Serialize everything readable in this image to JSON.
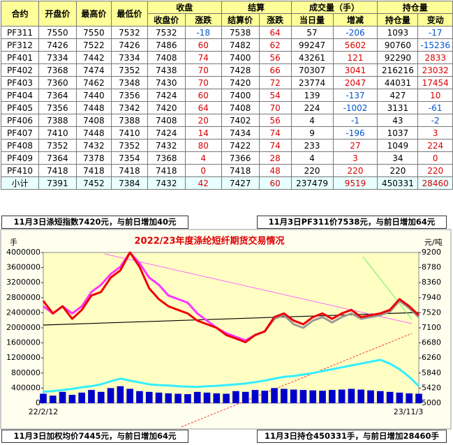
{
  "table": {
    "columns": [
      "合约",
      "开盘价",
      "最高价",
      "最低价"
    ],
    "groups": [
      {
        "title": "收盘",
        "columns": [
          "收盘价",
          "涨跌"
        ]
      },
      {
        "title": "结算",
        "columns": [
          "结算价",
          "涨跌"
        ]
      },
      {
        "title": "成交量（手）",
        "columns": [
          "当日量",
          "增减"
        ]
      },
      {
        "title": "持仓量",
        "columns": [
          "持仓量",
          "变动"
        ]
      }
    ],
    "rows": [
      [
        "PF311",
        7550,
        7550,
        7532,
        7532,
        -18,
        7538,
        64,
        57,
        -206,
        1093,
        -17
      ],
      [
        "PF312",
        7426,
        7522,
        7426,
        7486,
        60,
        7482,
        62,
        99247,
        5602,
        90760,
        -15236
      ],
      [
        "PF401",
        7334,
        7442,
        7334,
        7408,
        74,
        7400,
        56,
        43261,
        121,
        92290,
        2833
      ],
      [
        "PF402",
        7368,
        7474,
        7352,
        7438,
        70,
        7428,
        66,
        70307,
        3041,
        216216,
        23032
      ],
      [
        "PF403",
        7360,
        7462,
        7348,
        7430,
        70,
        7420,
        72,
        23774,
        2047,
        44031,
        17454
      ],
      [
        "PF404",
        7364,
        7440,
        7356,
        7424,
        60,
        7400,
        54,
        139,
        -137,
        427,
        10
      ],
      [
        "PF405",
        7356,
        7448,
        7342,
        7420,
        64,
        7408,
        70,
        224,
        -1002,
        3131,
        -61
      ],
      [
        "PF406",
        7388,
        7408,
        7388,
        7408,
        20,
        7402,
        56,
        4,
        -1,
        43,
        -2
      ],
      [
        "PF407",
        7410,
        7448,
        7410,
        7424,
        14,
        7434,
        74,
        9,
        -196,
        1037,
        3
      ],
      [
        "PF408",
        7352,
        7432,
        7352,
        7432,
        80,
        7422,
        74,
        233,
        27,
        1049,
        224
      ],
      [
        "PF409",
        7364,
        7378,
        7354,
        7368,
        4,
        7366,
        28,
        4,
        3,
        34,
        0
      ],
      [
        "PF410",
        7418,
        7418,
        7418,
        7418,
        0,
        7418,
        48,
        220,
        220,
        220,
        220
      ],
      [
        "小计",
        7391,
        7452,
        7384,
        7432,
        42,
        7427,
        60,
        237479,
        9519,
        450331,
        28460
      ]
    ]
  },
  "banners": [
    "11月3日涤短指数7420元，与前日增加40元",
    "11月3日PF311价7538元，与前日增加64元",
    "11月3日加权均价7445元，与前日增加64元",
    "11月3日持仓450331手，与前日增加28460手"
  ],
  "chart_data": {
    "type": "combo",
    "title": "2022/23年度涤纶短纤期货交易情况",
    "y_label": "手",
    "y2_label": "元/吨",
    "categories": [
      "22/2/12",
      null,
      null,
      null,
      null,
      null,
      null,
      null,
      null,
      null,
      null,
      null,
      null,
      null,
      null,
      null,
      null,
      null,
      null,
      null,
      null,
      null,
      null,
      null,
      null,
      null,
      null,
      null,
      null,
      null,
      null,
      null,
      null,
      null,
      null,
      null,
      null,
      null,
      null,
      "23/11/3"
    ],
    "ylim": [
      0,
      4000000
    ],
    "yticks": [
      0,
      400000,
      800000,
      1200000,
      1600000,
      2000000,
      2400000,
      2800000,
      3200000,
      3600000,
      4000000
    ],
    "y2lim": [
      5000,
      9200
    ],
    "y2ticks": [
      5000,
      5420,
      5840,
      6260,
      6680,
      7100,
      7520,
      7940,
      8360,
      8780,
      9200
    ],
    "series": [
      {
        "kind": "bar",
        "color": "#0000cc",
        "values": [
          250000,
          200000,
          300000,
          220000,
          280000,
          350000,
          300000,
          400000,
          450000,
          380000,
          320000,
          300000,
          280000,
          260000,
          250000,
          240000,
          300000,
          280000,
          260000,
          250000,
          320000,
          300000,
          350000,
          330000,
          400000,
          380000,
          360000,
          350000,
          340000,
          330000,
          350000,
          360000,
          380000,
          360000,
          340000,
          320000,
          300000,
          280000,
          260000,
          250000
        ]
      },
      {
        "kind": "line",
        "color": "#33eeff",
        "values": [
          300000,
          320000,
          350000,
          380000,
          420000,
          450000,
          500000,
          580000,
          650000,
          600000,
          550000,
          500000,
          480000,
          470000,
          450000,
          440000,
          430000,
          450000,
          460000,
          480000,
          500000,
          520000,
          560000,
          600000,
          650000,
          700000,
          720000,
          760000,
          800000,
          850000,
          900000,
          950000,
          1000000,
          1050000,
          1100000,
          1150000,
          1050000,
          900000,
          700000,
          450000
        ]
      },
      {
        "kind": "line",
        "axis": "y2",
        "color": "#ff33ff",
        "values": [
          7700,
          7500,
          7700,
          7500,
          7700,
          8100,
          8300,
          8600,
          8800,
          9200,
          8900,
          8500,
          8300,
          8000,
          7900,
          7800,
          7500,
          7300,
          7100,
          6950,
          6850,
          6750,
          6900,
          7000,
          7400,
          7500,
          7300,
          7200,
          7400,
          7500,
          7350,
          7500,
          7600,
          7400,
          7450,
          7500,
          7600,
          7900,
          7700,
          7450
        ]
      },
      {
        "kind": "line",
        "axis": "y2",
        "color": "#999999",
        "values": [
          null,
          null,
          null,
          null,
          null,
          null,
          null,
          null,
          null,
          null,
          null,
          null,
          null,
          null,
          null,
          null,
          null,
          null,
          null,
          null,
          6800,
          6700,
          6900,
          7000,
          7350,
          7450,
          7200,
          7100,
          7300,
          7400,
          7250,
          7400,
          7500,
          7350,
          7400,
          7450,
          7550,
          7850,
          7650,
          7400
        ]
      },
      {
        "kind": "line",
        "axis": "y2",
        "color": "#ee0000",
        "values": [
          7850,
          7500,
          7700,
          7350,
          7600,
          8000,
          8100,
          8500,
          8700,
          9200,
          8800,
          8200,
          7900,
          7700,
          7600,
          7500,
          7300,
          7200,
          7100,
          6900,
          6800,
          6700,
          6900,
          7000,
          7400,
          7500,
          7300,
          7200,
          7400,
          7500,
          7350,
          7500,
          7600,
          7400,
          7450,
          7500,
          7600,
          7900,
          7700,
          7450
        ]
      }
    ]
  }
}
